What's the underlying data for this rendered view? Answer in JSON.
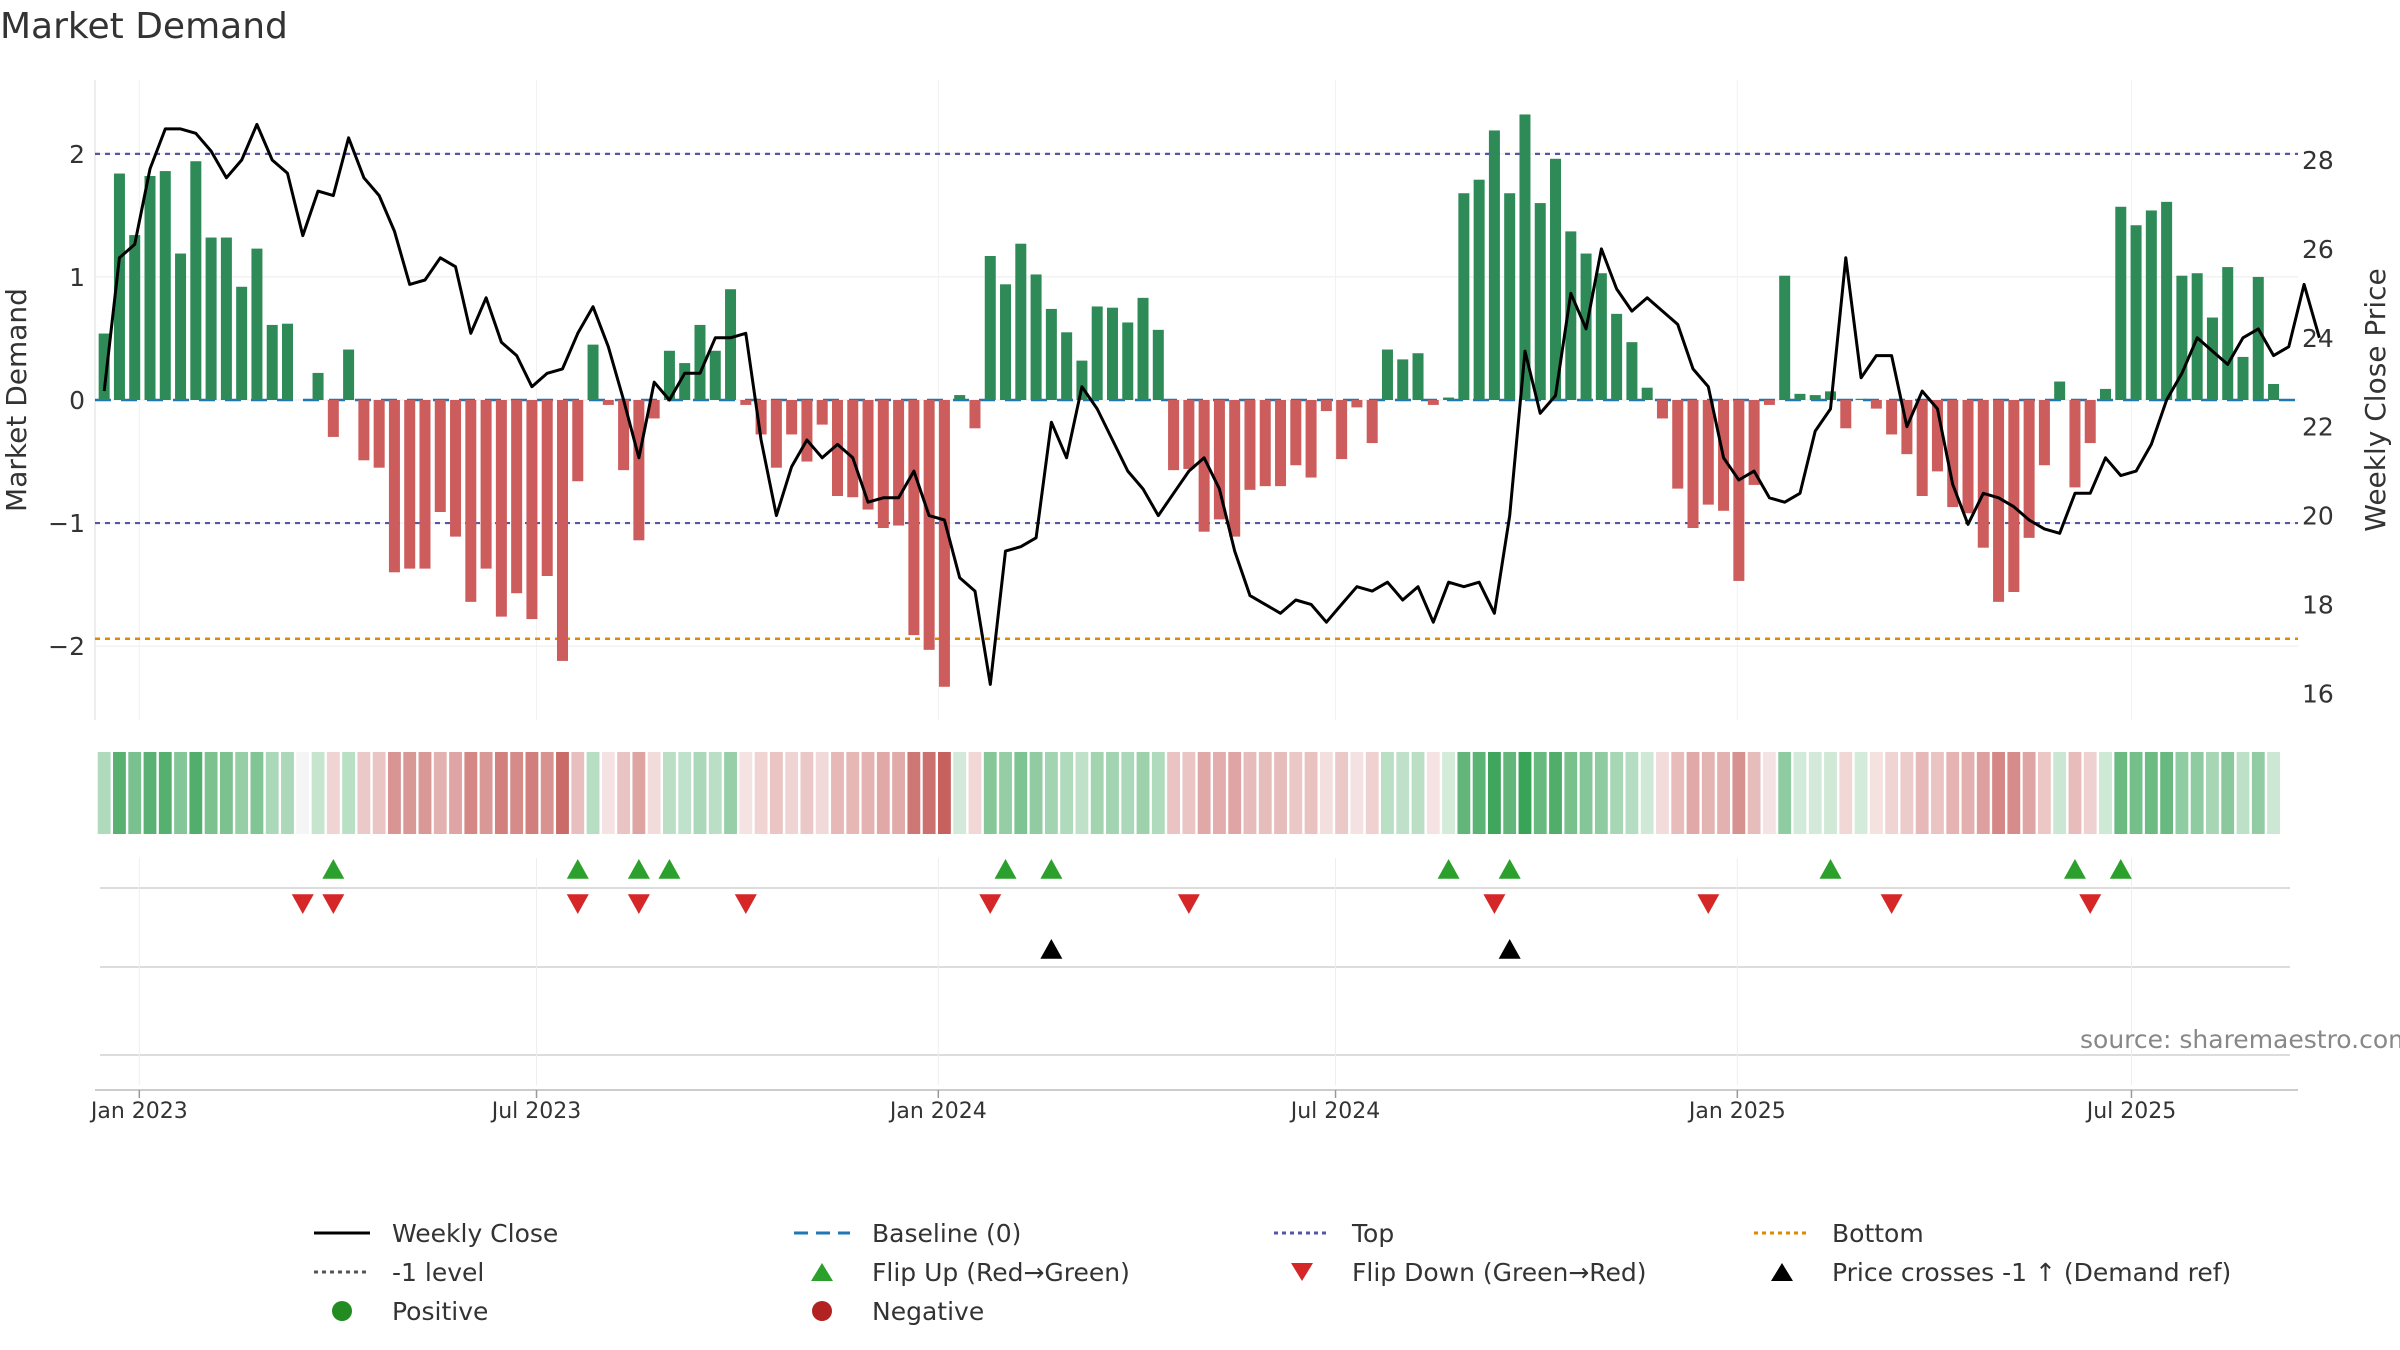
{
  "title": "Market Demand",
  "source": "source: sharemaestro.com",
  "colors": {
    "positive_bar": "#2e8b57",
    "negative_bar": "#cd5c5c",
    "weekly_close": "#000000",
    "baseline": "#1f77b4",
    "top": "#5555aa",
    "bottom": "#e08a00",
    "flip_up": "#2ca02c",
    "flip_down": "#d62728",
    "cross": "#000000",
    "positive_dot": "#228b22",
    "negative_dot": "#b22222"
  },
  "chart_data": {
    "type": "bar",
    "title": "Market Demand",
    "ylabel": "Market Demand",
    "y2label": "Weekly Close Price",
    "ylim": [
      -2.6,
      2.6
    ],
    "y2lim": [
      15.4,
      29.8
    ],
    "yticks": [
      -2,
      -1,
      0,
      1,
      2
    ],
    "yticklabels": [
      "−2",
      "−1",
      "0",
      "1",
      "2"
    ],
    "y2ticks": [
      16,
      18,
      20,
      22,
      24,
      26,
      28
    ],
    "y2ticklabels": [
      "16",
      "18",
      "20",
      "22",
      "24",
      "26",
      "28"
    ],
    "start_date": "2022-12-12",
    "weeks": 144,
    "x_range_weeks": [
      -0.6,
      143.6
    ],
    "xticks": [
      {
        "label": "Jan 2023",
        "week": 2.3
      },
      {
        "label": "Jul 2023",
        "week": 28.3
      },
      {
        "label": "Jan 2024",
        "week": 54.6
      },
      {
        "label": "Jul 2024",
        "week": 80.6
      },
      {
        "label": "Jan 2025",
        "week": 106.9
      },
      {
        "label": "Jul 2025",
        "week": 132.7
      }
    ],
    "reference_lines": {
      "top": 2.0,
      "minus_one": -1.0,
      "bottom": -1.94,
      "baseline": 0
    },
    "series": [
      {
        "name": "Market Demand",
        "values": [
          0.54,
          1.84,
          1.34,
          1.82,
          1.86,
          1.19,
          1.94,
          1.32,
          1.32,
          0.92,
          1.23,
          0.61,
          0.62,
          0,
          0.22,
          -0.3,
          0.41,
          -0.49,
          -0.55,
          -1.4,
          -1.37,
          -1.37,
          -0.91,
          -1.11,
          -1.64,
          -1.37,
          -1.76,
          -1.57,
          -1.78,
          -1.43,
          -2.12,
          -0.66,
          0.45,
          -0.04,
          -0.57,
          -1.14,
          -0.15,
          0.4,
          0.3,
          0.61,
          0.4,
          0.9,
          -0.04,
          -0.28,
          -0.55,
          -0.28,
          -0.5,
          -0.2,
          -0.78,
          -0.79,
          -0.89,
          -1.04,
          -1.02,
          -1.91,
          -2.03,
          -2.33,
          0.04,
          -0.23,
          1.17,
          0.94,
          1.27,
          1.02,
          0.74,
          0.55,
          0.32,
          0.76,
          0.75,
          0.63,
          0.83,
          0.57,
          -0.57,
          -0.56,
          -1.07,
          -0.97,
          -1.11,
          -0.73,
          -0.7,
          -0.7,
          -0.53,
          -0.63,
          -0.09,
          -0.48,
          -0.06,
          -0.35,
          0.41,
          0.33,
          0.38,
          -0.04,
          0.02,
          1.68,
          1.79,
          2.19,
          1.68,
          2.32,
          1.6,
          1.96,
          1.37,
          1.19,
          1.03,
          0.7,
          0.47,
          0.1,
          -0.15,
          -0.72,
          -1.04,
          -0.85,
          -0.9,
          -1.47,
          -0.69,
          -0.04,
          1.01,
          0.05,
          0.04,
          0.07,
          -0.23,
          0.01,
          -0.07,
          -0.28,
          -0.44,
          -0.78,
          -0.58,
          -0.87,
          -0.92,
          -1.2,
          -1.64,
          -1.56,
          -1.12,
          -0.53,
          0.15,
          -0.71,
          -0.35,
          0.09,
          1.57,
          1.42,
          1.54,
          1.61,
          1.01,
          1.03,
          0.67,
          1.08,
          0.35,
          1.0,
          0.13
        ]
      },
      {
        "name": "Weekly Close",
        "axis": "right",
        "values": [
          22.8,
          25.8,
          26.1,
          27.8,
          28.7,
          28.7,
          28.6,
          28.2,
          27.6,
          28.0,
          28.8,
          28.0,
          27.7,
          26.3,
          27.3,
          27.2,
          28.5,
          27.6,
          27.2,
          26.4,
          25.2,
          25.3,
          25.8,
          25.6,
          24.1,
          24.9,
          23.9,
          23.6,
          22.9,
          23.2,
          23.3,
          24.1,
          24.7,
          23.8,
          22.6,
          21.3,
          23.0,
          22.6,
          23.2,
          23.2,
          24.0,
          24.0,
          24.1,
          21.7,
          20.0,
          21.1,
          21.7,
          21.3,
          21.6,
          21.3,
          20.3,
          20.4,
          20.4,
          21.0,
          20.0,
          19.9,
          18.6,
          18.3,
          16.2,
          19.2,
          19.3,
          19.5,
          22.1,
          21.3,
          22.9,
          22.4,
          21.7,
          21.0,
          20.6,
          20.0,
          20.5,
          21.0,
          21.3,
          20.6,
          19.2,
          18.2,
          18.0,
          17.8,
          18.1,
          18.0,
          17.6,
          18.0,
          18.4,
          18.3,
          18.5,
          18.1,
          18.4,
          17.6,
          18.5,
          18.4,
          18.5,
          17.8,
          20.0,
          23.7,
          22.3,
          22.7,
          25.0,
          24.2,
          26.0,
          25.1,
          24.6,
          24.9,
          24.6,
          24.3,
          23.3,
          22.9,
          21.3,
          20.8,
          21.0,
          20.4,
          20.3,
          20.5,
          21.9,
          22.4,
          25.8,
          23.1,
          23.6,
          23.6,
          22.0,
          22.8,
          22.4,
          20.7,
          19.8,
          20.5,
          20.4,
          20.2,
          19.9,
          19.7,
          19.6,
          20.5,
          20.5,
          21.3,
          20.9,
          21.0,
          21.6,
          22.6,
          23.2,
          24.0,
          23.7,
          23.4,
          24.0,
          24.2,
          23.6,
          23.8,
          25.2,
          24.0
        ]
      }
    ],
    "flip_up_weeks": [
      15,
      31,
      35,
      37,
      59,
      62,
      88,
      92,
      113,
      129,
      132
    ],
    "flip_down_weeks": [
      13,
      15,
      31,
      35,
      42,
      58,
      71,
      91,
      105,
      117,
      130
    ],
    "price_cross_weeks": [
      62,
      92
    ],
    "legend": [
      {
        "key": "weekly_close",
        "label": "Weekly Close"
      },
      {
        "key": "baseline",
        "label": "Baseline (0)"
      },
      {
        "key": "top",
        "label": "Top"
      },
      {
        "key": "bottom",
        "label": "Bottom"
      },
      {
        "key": "minus_one",
        "label": "-1 level"
      },
      {
        "key": "flip_up",
        "label": "Flip Up (Red→Green)"
      },
      {
        "key": "flip_down",
        "label": "Flip Down (Green→Red)"
      },
      {
        "key": "cross",
        "label": "Price crosses -1 ↑ (Demand ref)"
      },
      {
        "key": "positive",
        "label": "Positive"
      },
      {
        "key": "negative",
        "label": "Negative"
      }
    ]
  }
}
